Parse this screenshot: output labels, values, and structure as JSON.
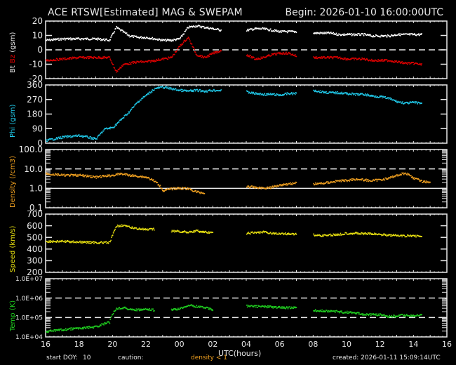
{
  "header": {
    "title": "ACE RTSW[Estimated] MAG & SWEPAM",
    "begin": "Begin: 2026-01-10 16:00:00UTC"
  },
  "footer": {
    "start_doy_label": "start DOY:",
    "start_doy_value": "10",
    "caution_label": "caution:",
    "caution_text": "density < 1",
    "created": "created: 2026-01-11 15:09:14UTC"
  },
  "colors": {
    "bt": "#ffffff",
    "bz": "#e00000",
    "phi": "#20c8e8",
    "density": "#f0a020",
    "speed": "#e8e010",
    "temp": "#20d020",
    "axis": "#e8e8e8",
    "background": "#000000"
  },
  "chart_data": [
    {
      "type": "scatter",
      "title": "Bt / Bz",
      "ylabel_parts": [
        {
          "text": "Bt",
          "color": "#e8e8e8"
        },
        {
          "text": "Bz",
          "color": "#e00000"
        },
        {
          "text": "(gsm)",
          "color": "#e8e8e8"
        }
      ],
      "ylim": [
        -20,
        20
      ],
      "yticks": [
        "20",
        "10",
        "0",
        "-10",
        "-20"
      ],
      "reference_lines": [
        0
      ],
      "x": [
        16,
        17,
        18,
        19,
        19.8,
        20.2,
        20.6,
        21,
        21.5,
        22,
        22.5,
        23,
        23.5,
        24,
        24.5,
        25,
        25.5,
        26,
        26.5,
        27,
        28,
        28.5,
        29,
        29.5,
        30,
        30.5,
        31,
        31.5,
        32,
        32.5,
        33,
        33.5,
        34,
        34.5,
        35,
        35.5,
        36,
        36.5,
        37,
        37.5,
        38,
        38.5,
        39
      ],
      "series": [
        {
          "name": "Bt",
          "color": "#ffffff",
          "values": [
            7,
            8,
            8,
            8,
            7,
            16,
            13,
            10,
            9,
            9,
            8,
            7,
            7,
            8,
            16,
            17,
            16,
            15,
            14,
            null,
            14,
            15,
            15,
            14,
            13,
            13,
            13,
            null,
            12,
            12,
            12,
            11,
            11,
            11,
            11,
            10,
            10,
            10,
            11,
            11,
            11,
            11,
            null
          ]
        },
        {
          "name": "Bz",
          "color": "#e00000",
          "values": [
            -7,
            -6,
            -5,
            -5,
            -5,
            -15,
            -10,
            -9,
            -8,
            -8,
            -7,
            -6,
            -5,
            3,
            9,
            -3,
            -5,
            -2,
            0,
            null,
            -3,
            -6,
            -5,
            -3,
            -2,
            -2,
            -4,
            null,
            -5,
            -5,
            -5,
            -5,
            -6,
            -6,
            -6,
            -7,
            -7,
            -7,
            -8,
            -9,
            -9,
            -10,
            null
          ]
        }
      ]
    },
    {
      "type": "scatter",
      "title": "Phi",
      "ylabel": "Phi (gsm)",
      "ylim": [
        0,
        360
      ],
      "yticks": [
        "360",
        "270",
        "180",
        "90",
        "0"
      ],
      "x": [
        16,
        17,
        18,
        19,
        19.5,
        20,
        20.5,
        21,
        21.5,
        22,
        22.5,
        23,
        23.5,
        24,
        24.5,
        25,
        25.5,
        26,
        26.5,
        27,
        28,
        28.5,
        29,
        29.5,
        30,
        30.5,
        31,
        31.5,
        32,
        32.5,
        33,
        33.5,
        34,
        34.5,
        35,
        35.5,
        36,
        36.5,
        37,
        37.5,
        38,
        38.5,
        39
      ],
      "series": [
        {
          "name": "Phi",
          "color": "#20c8e8",
          "values": [
            20,
            40,
            50,
            30,
            90,
            100,
            150,
            200,
            260,
            300,
            340,
            350,
            340,
            330,
            325,
            330,
            325,
            330,
            330,
            null,
            320,
            310,
            305,
            305,
            300,
            310,
            310,
            null,
            330,
            320,
            315,
            315,
            310,
            305,
            305,
            295,
            290,
            280,
            260,
            250,
            255,
            250,
            null
          ]
        }
      ]
    },
    {
      "type": "scatter",
      "title": "Density",
      "ylabel": "Density (/cm3)",
      "yscale": "log",
      "ylim": [
        0.1,
        100.0
      ],
      "yticks": [
        "100.0",
        "10.0",
        "1.0",
        "0.1"
      ],
      "reference_lines": [
        10.0,
        1.0
      ],
      "x": [
        16,
        17,
        18,
        19,
        20,
        20.5,
        21,
        22,
        23,
        23.5,
        24,
        24.5,
        25,
        25.5,
        26,
        26.5,
        27,
        28,
        28.5,
        29,
        29.5,
        30,
        30.5,
        31,
        31.5,
        32,
        32.5,
        33,
        33.5,
        34,
        34.5,
        35,
        35.5,
        36,
        36.5,
        37,
        37.5,
        38,
        38.5,
        39
      ],
      "series": [
        {
          "name": "Density",
          "color": "#f0a020",
          "values": [
            6,
            5,
            5,
            4,
            5,
            6,
            5,
            4,
            0.8,
            1.0,
            1.1,
            1.0,
            0.7,
            0.6,
            null,
            null,
            null,
            1.3,
            1.2,
            1.1,
            1.2,
            1.6,
            1.8,
            2.0,
            null,
            1.8,
            1.9,
            2.2,
            2.6,
            2.7,
            3.2,
            2.9,
            2.6,
            3.0,
            3.5,
            5.0,
            6.5,
            3.5,
            2.4,
            2.2
          ]
        }
      ]
    },
    {
      "type": "scatter",
      "title": "Speed",
      "ylabel": "Speed (km/s)",
      "ylim": [
        200,
        700
      ],
      "yticks": [
        "700",
        "600",
        "500",
        "400",
        "300",
        "200"
      ],
      "x": [
        16,
        17,
        18,
        19,
        19.8,
        20.2,
        20.6,
        21,
        21.5,
        22,
        22.5,
        23,
        23.5,
        24,
        24.5,
        25,
        25.5,
        26,
        26.5,
        27,
        28,
        28.5,
        29,
        29.5,
        30,
        30.5,
        31,
        31.5,
        32,
        32.5,
        33,
        33.5,
        34,
        34.5,
        35,
        35.5,
        36,
        36.5,
        37,
        37.5,
        38,
        38.5,
        39
      ],
      "series": [
        {
          "name": "Speed",
          "color": "#e8e010",
          "values": [
            470,
            470,
            465,
            460,
            460,
            600,
            610,
            590,
            580,
            570,
            575,
            null,
            560,
            555,
            550,
            560,
            550,
            540,
            null,
            null,
            540,
            545,
            550,
            540,
            535,
            535,
            535,
            null,
            525,
            520,
            525,
            530,
            540,
            540,
            535,
            535,
            530,
            525,
            520,
            515,
            520,
            510,
            null
          ]
        }
      ]
    },
    {
      "type": "scatter",
      "title": "Temp",
      "ylabel": "Temp (K)",
      "yscale": "log",
      "ylim": [
        10000,
        10000000
      ],
      "yticks": [
        "1.0E+07",
        "1.0E+06",
        "1.0E+05",
        "1.0E+04"
      ],
      "reference_lines": [
        1000000,
        100000
      ],
      "x": [
        16,
        17,
        18,
        19,
        19.8,
        20.2,
        20.6,
        21,
        21.5,
        22,
        22.5,
        23,
        23.5,
        24,
        24.5,
        25,
        25.5,
        26,
        26.5,
        27,
        28,
        28.5,
        29,
        29.5,
        30,
        30.5,
        31,
        31.5,
        32,
        32.5,
        33,
        33.5,
        34,
        34.5,
        35,
        35.5,
        36,
        36.5,
        37,
        37.5,
        38,
        38.5,
        39
      ],
      "series": [
        {
          "name": "Temp",
          "color": "#20d020",
          "values": [
            20000,
            25000,
            30000,
            35000,
            60000,
            300000,
            350000,
            280000,
            260000,
            280000,
            250000,
            null,
            260000,
            300000,
            450000,
            400000,
            350000,
            250000,
            null,
            null,
            420000,
            400000,
            390000,
            370000,
            350000,
            340000,
            330000,
            null,
            250000,
            230000,
            230000,
            210000,
            200000,
            180000,
            160000,
            150000,
            150000,
            120000,
            130000,
            140000,
            130000,
            140000,
            null
          ]
        }
      ]
    }
  ],
  "x_axis": {
    "label": "UTC(hours)",
    "ticks": [
      "16",
      "18",
      "20",
      "22",
      "00",
      "02",
      "04",
      "06",
      "08",
      "10",
      "12",
      "14",
      "16"
    ],
    "range_hours": [
      16,
      40
    ]
  }
}
